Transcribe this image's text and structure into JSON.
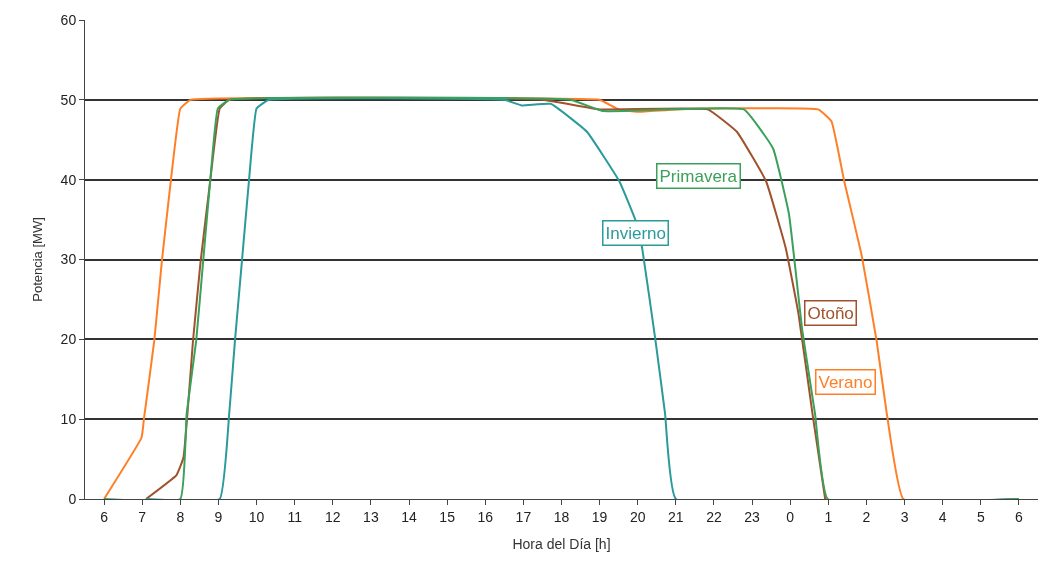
{
  "chart_data": {
    "type": "line",
    "xlabel": "Hora del Día [h]",
    "ylabel": "Potencia [MW]",
    "xlim": [
      "--01-01T05:30",
      "--01-02T06:30"
    ],
    "ylim": [
      0,
      60
    ],
    "yticks": [
      0,
      10,
      20,
      30,
      40,
      50,
      60
    ],
    "xticks": [
      {
        "value": "--01-01T06:00",
        "label": "6"
      },
      {
        "value": "--01-01T07:00",
        "label": "7"
      },
      {
        "value": "--01-01T08:00",
        "label": "8"
      },
      {
        "value": "--01-01T09:00",
        "label": "9"
      },
      {
        "value": "--01-01T10:00",
        "label": "10"
      },
      {
        "value": "--01-01T11:00",
        "label": "11"
      },
      {
        "value": "--01-01T12:00",
        "label": "12"
      },
      {
        "value": "--01-01T13:00",
        "label": "13"
      },
      {
        "value": "--01-01T14:00",
        "label": "14"
      },
      {
        "value": "--01-01T15:00",
        "label": "15"
      },
      {
        "value": "--01-01T16:00",
        "label": "16"
      },
      {
        "value": "--01-01T17:00",
        "label": "17"
      },
      {
        "value": "--01-01T18:00",
        "label": "18"
      },
      {
        "value": "--01-01T19:00",
        "label": "19"
      },
      {
        "value": "--01-01T20:00",
        "label": "20"
      },
      {
        "value": "--01-01T21:00",
        "label": "21"
      },
      {
        "value": "--01-01T22:00",
        "label": "22"
      },
      {
        "value": "--01-01T23:00",
        "label": "23"
      },
      {
        "value": "--01-02T00:00",
        "label": "0"
      },
      {
        "value": "--01-02T01:00",
        "label": "1"
      },
      {
        "value": "--01-02T02:00",
        "label": "2"
      },
      {
        "value": "--01-02T03:00",
        "label": "3"
      },
      {
        "value": "--01-02T04:00",
        "label": "4"
      },
      {
        "value": "--01-02T05:00",
        "label": "5"
      },
      {
        "value": "--01-02T06:00",
        "label": "6"
      }
    ],
    "grid": "y",
    "legend": false,
    "marker": "none",
    "line_style": "solid",
    "series": [
      {
        "name": "Verano",
        "color": "#ff7f27",
        "x": [
          "--01-01T06:00",
          "--01-01T06:59",
          "--01-01T07:03",
          "--01-01T07:19",
          "--01-01T07:31",
          "--01-01T07:45",
          "--01-01T08:00",
          "--01-01T08:16",
          "--01-01T18:30",
          "--01-01T19:00",
          "--01-01T19:30",
          "--01-01T20:00",
          "--01-01T21:00",
          "--01-02T00:44",
          "--01-02T01:05",
          "--01-02T01:25",
          "--01-02T01:52",
          "--01-02T02:16",
          "--01-02T02:32",
          "--01-02T02:58",
          "--01-02T06:00"
        ],
        "values": [
          0,
          7.7,
          10.2,
          19.8,
          29.8,
          39.8,
          48.9,
          50,
          50.1,
          50,
          48.8,
          48.5,
          48.8,
          48.8,
          47.3,
          39.8,
          30.7,
          19.8,
          10.7,
          0,
          0
        ]
      },
      {
        "name": "Otoño",
        "color": "#a0522d",
        "x": [
          "--01-01T07:06",
          "--01-01T07:54",
          "--01-01T08:05",
          "--01-01T08:20",
          "--01-01T08:32",
          "--01-01T08:47",
          "--01-01T09:02",
          "--01-01T09:17",
          "--01-01T17:30",
          "--01-01T19:00",
          "--01-01T21:50",
          "--01-01T22:36",
          "--01-01T23:22",
          "--01-01T23:53",
          "--01-02T00:13",
          "--01-02T00:35",
          "--01-02T00:55"
        ],
        "values": [
          0,
          3,
          5.2,
          19.8,
          29.8,
          39.8,
          48.9,
          50,
          50,
          48.8,
          48.8,
          46,
          39.8,
          31.4,
          23.2,
          10.7,
          0
        ]
      },
      {
        "name": "Invierno",
        "color": "#2a9a9a",
        "x": [
          "--01-01T07:06",
          "--01-01T09:02",
          "--01-01T09:17",
          "--01-01T09:26",
          "--01-01T09:37",
          "--01-01T09:48",
          "--01-01T10:00",
          "--01-01T10:19",
          "--01-01T16:30",
          "--01-01T16:57",
          "--01-01T17:43",
          "--01-01T18:40",
          "--01-01T19:31",
          "--01-01T19:57",
          "--01-01T20:07",
          "--01-01T20:28",
          "--01-01T20:43",
          "--01-01T21:00",
          "--01-02T06:00"
        ],
        "values": [
          0,
          0,
          10.7,
          19.8,
          29.8,
          39.8,
          48.9,
          50,
          50,
          49.3,
          49.5,
          46,
          39.8,
          34.8,
          31.4,
          19.8,
          10.7,
          0,
          0
        ]
      },
      {
        "name": "Primavera",
        "color": "#3aa05a",
        "x": [
          "--01-01T06:00",
          "--01-01T08:00",
          "--01-01T08:10",
          "--01-01T08:25",
          "--01-01T08:36",
          "--01-01T08:47",
          "--01-01T08:59",
          "--01-01T09:17",
          "--01-01T18:14",
          "--01-01T19:05",
          "--01-01T22:47",
          "--01-01T23:33",
          "--01-01T23:58",
          "--01-02T00:19",
          "--01-02T00:39",
          "--01-02T00:59",
          "--01-02T06:00"
        ],
        "values": [
          0,
          0,
          10.7,
          19.8,
          29.8,
          39.8,
          48.9,
          50,
          50,
          48.6,
          48.8,
          43.9,
          35.7,
          21.1,
          10.7,
          0,
          0
        ]
      }
    ]
  }
}
